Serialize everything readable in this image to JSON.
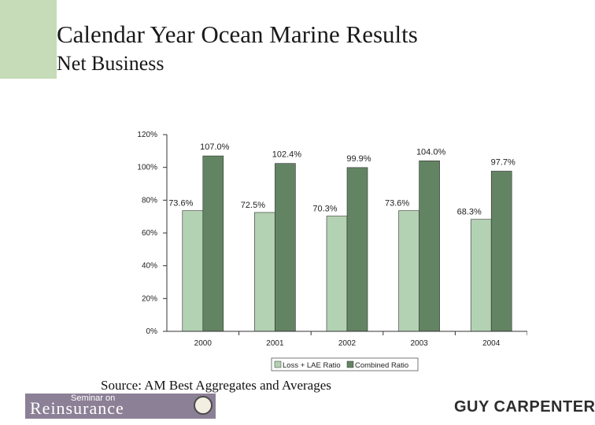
{
  "slide": {
    "title": "Calendar Year Ocean Marine Results",
    "subtitle": "Net Business",
    "source": "Source: AM Best Aggregates and Averages"
  },
  "logos": {
    "seminar_small": "Seminar on",
    "seminar_main": "Reinsurance",
    "cas_seal": "CAS",
    "company": "GUY CARPENTER"
  },
  "colors": {
    "accent": "#c6dbb8",
    "loss_bar": "#b3d1b3",
    "combined_bar": "#638463",
    "logo_bg": "#8c8096"
  },
  "chart_data": {
    "type": "bar",
    "categories": [
      "2000",
      "2001",
      "2002",
      "2003",
      "2004"
    ],
    "series": [
      {
        "name": "Loss + LAE Ratio",
        "values": [
          73.6,
          72.5,
          70.3,
          73.6,
          68.3
        ],
        "labels": [
          "73.6%",
          "72.5%",
          "70.3%",
          "73.6%",
          "68.3%"
        ]
      },
      {
        "name": "Combined Ratio",
        "values": [
          107.0,
          102.4,
          99.9,
          104.0,
          97.7
        ],
        "labels": [
          "107.0%",
          "102.4%",
          "99.9%",
          "104.0%",
          "97.7%"
        ]
      }
    ],
    "yticks": [
      "0%",
      "20%",
      "40%",
      "60%",
      "80%",
      "100%",
      "120%"
    ],
    "ylim": [
      0,
      120
    ],
    "legend_position": "bottom-right"
  }
}
